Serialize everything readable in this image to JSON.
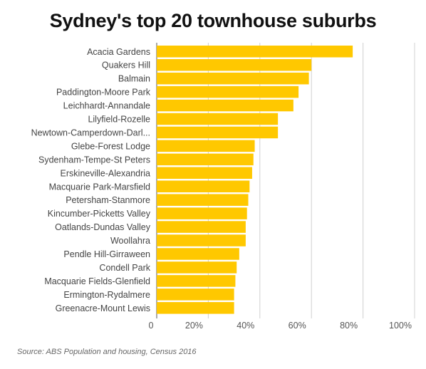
{
  "chart_data": {
    "type": "bar",
    "orientation": "horizontal",
    "title": "Sydney's top 20 townhouse suburbs",
    "categories": [
      "Acacia Gardens",
      "Quakers Hill",
      "Balmain",
      "Paddington-Moore Park",
      "Leichhardt-Annandale",
      "Lilyfield-Rozelle",
      "Newtown-Camperdown-Darl...",
      "Glebe-Forest Lodge",
      "Sydenham-Tempe-St Peters",
      "Erskineville-Alexandria",
      "Macquarie Park-Marsfield",
      "Petersham-Stanmore",
      "Kincumber-Picketts Valley",
      "Oatlands-Dundas Valley",
      "Woollahra",
      "Pendle Hill-Girraween",
      "Condell Park",
      "Macquarie Fields-Glenfield",
      "Ermington-Rydalmere",
      "Greenacre-Mount Lewis"
    ],
    "values": [
      0.76,
      0.6,
      0.59,
      0.55,
      0.53,
      0.47,
      0.47,
      0.38,
      0.375,
      0.37,
      0.36,
      0.355,
      0.35,
      0.345,
      0.345,
      0.32,
      0.31,
      0.305,
      0.3,
      0.3
    ],
    "xlim": [
      0,
      1
    ],
    "x_ticks": [
      "0",
      "20%",
      "40%",
      "60%",
      "80%",
      "100%"
    ],
    "grid": true,
    "bar_color": "#FFC800",
    "source": "Source: ABS Population and housing, Census 2016"
  }
}
